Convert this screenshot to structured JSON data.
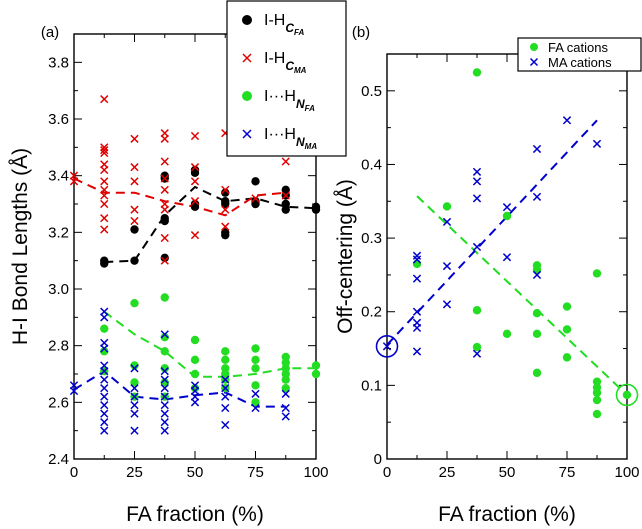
{
  "figure": {
    "colors": {
      "black": "#000000",
      "red": "#e00000",
      "green": "#22dd22",
      "blue": "#0000cc"
    }
  },
  "chart_data": [
    {
      "panel_label": "(a)",
      "type": "scatter",
      "xlabel": "FA fraction (%)",
      "ylabel": "H-I Bond Lengths (Å)",
      "xlim": [
        0,
        100
      ],
      "ylim": [
        2.4,
        3.9
      ],
      "xticks": [
        0,
        25,
        50,
        75,
        100
      ],
      "yticks": [
        2.4,
        2.6,
        2.8,
        3.0,
        3.2,
        3.4,
        3.6,
        3.8
      ],
      "ytick_labels": [
        "2.4",
        "2.6",
        "2.8",
        "3.0",
        "3.2",
        "3.4",
        "3.6",
        "3.8"
      ],
      "grid": false,
      "legend": {
        "placement": "top-right"
      },
      "series": [
        {
          "legend": {
            "base": "I-H",
            "sub": "C",
            "subsub": "FA"
          },
          "color": "#000000",
          "marker": "circle",
          "points": [
            [
              12.5,
              3.09
            ],
            [
              12.5,
              3.1
            ],
            [
              25,
              3.1
            ],
            [
              25,
              3.21
            ],
            [
              37.5,
              3.11
            ],
            [
              37.5,
              3.24
            ],
            [
              37.5,
              3.25
            ],
            [
              37.5,
              3.39
            ],
            [
              37.5,
              3.4
            ],
            [
              50,
              3.29
            ],
            [
              50,
              3.3
            ],
            [
              50,
              3.41
            ],
            [
              50,
              3.42
            ],
            [
              62.5,
              3.19
            ],
            [
              62.5,
              3.2
            ],
            [
              62.5,
              3.3
            ],
            [
              62.5,
              3.31
            ],
            [
              62.5,
              3.34
            ],
            [
              75,
              3.3
            ],
            [
              75,
              3.31
            ],
            [
              75,
              3.38
            ],
            [
              87.5,
              3.28
            ],
            [
              87.5,
              3.3
            ],
            [
              87.5,
              3.33
            ],
            [
              87.5,
              3.35
            ],
            [
              100,
              3.28
            ],
            [
              100,
              3.29
            ]
          ],
          "mean_line": [
            [
              12.5,
              3.095
            ],
            [
              25,
              3.1
            ],
            [
              37.5,
              3.26
            ],
            [
              50,
              3.36
            ],
            [
              62.5,
              3.31
            ],
            [
              75,
              3.32
            ],
            [
              87.5,
              3.29
            ],
            [
              100,
              3.285
            ]
          ]
        },
        {
          "legend": {
            "base": "I-H",
            "sub": "C",
            "subsub": "MA"
          },
          "color": "#e00000",
          "marker": "x",
          "points": [
            [
              0,
              3.38
            ],
            [
              0,
              3.4
            ],
            [
              12.5,
              3.21
            ],
            [
              12.5,
              3.25
            ],
            [
              12.5,
              3.3
            ],
            [
              12.5,
              3.33
            ],
            [
              12.5,
              3.35
            ],
            [
              12.5,
              3.38
            ],
            [
              12.5,
              3.42
            ],
            [
              12.5,
              3.44
            ],
            [
              12.5,
              3.48
            ],
            [
              12.5,
              3.49
            ],
            [
              12.5,
              3.5
            ],
            [
              12.5,
              3.67
            ],
            [
              25,
              3.24
            ],
            [
              25,
              3.28
            ],
            [
              25,
              3.38
            ],
            [
              25,
              3.43
            ],
            [
              25,
              3.53
            ],
            [
              37.5,
              3.1
            ],
            [
              37.5,
              3.18
            ],
            [
              37.5,
              3.28
            ],
            [
              37.5,
              3.3
            ],
            [
              37.5,
              3.35
            ],
            [
              37.5,
              3.39
            ],
            [
              37.5,
              3.45
            ],
            [
              37.5,
              3.53
            ],
            [
              37.5,
              3.55
            ],
            [
              50,
              3.19
            ],
            [
              50,
              3.31
            ],
            [
              50,
              3.38
            ],
            [
              50,
              3.43
            ],
            [
              50,
              3.54
            ],
            [
              62.5,
              3.22
            ],
            [
              62.5,
              3.28
            ],
            [
              62.5,
              3.35
            ],
            [
              62.5,
              3.55
            ],
            [
              75,
              3.32
            ],
            [
              75,
              3.53
            ],
            [
              87.5,
              3.33
            ],
            [
              87.5,
              3.45
            ]
          ],
          "mean_line": [
            [
              0,
              3.39
            ],
            [
              12.5,
              3.34
            ],
            [
              25,
              3.34
            ],
            [
              37.5,
              3.31
            ],
            [
              50,
              3.29
            ],
            [
              62.5,
              3.26
            ],
            [
              75,
              3.33
            ],
            [
              87.5,
              3.34
            ]
          ]
        },
        {
          "legend": {
            "base": "I···H",
            "sub": "N",
            "subsub": "FA"
          },
          "color": "#22dd22",
          "marker": "circle",
          "points": [
            [
              12.5,
              2.71
            ],
            [
              12.5,
              2.78
            ],
            [
              12.5,
              2.86
            ],
            [
              25,
              2.62
            ],
            [
              25,
              2.67
            ],
            [
              25,
              2.73
            ],
            [
              25,
              2.95
            ],
            [
              37.5,
              2.62
            ],
            [
              37.5,
              2.67
            ],
            [
              37.5,
              2.72
            ],
            [
              37.5,
              2.78
            ],
            [
              37.5,
              2.83
            ],
            [
              37.5,
              2.97
            ],
            [
              50,
              2.65
            ],
            [
              50,
              2.7
            ],
            [
              50,
              2.75
            ],
            [
              50,
              2.82
            ],
            [
              62.5,
              2.65
            ],
            [
              62.5,
              2.68
            ],
            [
              62.5,
              2.7
            ],
            [
              62.5,
              2.72
            ],
            [
              62.5,
              2.75
            ],
            [
              62.5,
              2.78
            ],
            [
              75,
              2.6
            ],
            [
              75,
              2.66
            ],
            [
              75,
              2.72
            ],
            [
              75,
              2.75
            ],
            [
              75,
              2.79
            ],
            [
              87.5,
              2.65
            ],
            [
              87.5,
              2.68
            ],
            [
              87.5,
              2.7
            ],
            [
              87.5,
              2.72
            ],
            [
              87.5,
              2.74
            ],
            [
              87.5,
              2.76
            ],
            [
              100,
              2.7
            ],
            [
              100,
              2.73
            ]
          ],
          "mean_line": [
            [
              12.5,
              2.92
            ],
            [
              25,
              2.84
            ],
            [
              37.5,
              2.78
            ],
            [
              50,
              2.69
            ],
            [
              62.5,
              2.69
            ],
            [
              75,
              2.7
            ],
            [
              87.5,
              2.72
            ],
            [
              100,
              2.72
            ]
          ]
        },
        {
          "legend": {
            "base": "I···H",
            "sub": "N",
            "subsub": "MA"
          },
          "color": "#0000cc",
          "marker": "x",
          "points": [
            [
              0,
              2.64
            ],
            [
              0,
              2.66
            ],
            [
              12.5,
              2.5
            ],
            [
              12.5,
              2.53
            ],
            [
              12.5,
              2.56
            ],
            [
              12.5,
              2.59
            ],
            [
              12.5,
              2.62
            ],
            [
              12.5,
              2.65
            ],
            [
              12.5,
              2.68
            ],
            [
              12.5,
              2.71
            ],
            [
              12.5,
              2.73
            ],
            [
              12.5,
              2.79
            ],
            [
              12.5,
              2.81
            ],
            [
              12.5,
              2.9
            ],
            [
              12.5,
              2.92
            ],
            [
              25,
              2.5
            ],
            [
              25,
              2.56
            ],
            [
              25,
              2.59
            ],
            [
              25,
              2.62
            ],
            [
              25,
              2.65
            ],
            [
              25,
              2.72
            ],
            [
              37.5,
              2.5
            ],
            [
              37.5,
              2.53
            ],
            [
              37.5,
              2.56
            ],
            [
              37.5,
              2.59
            ],
            [
              37.5,
              2.62
            ],
            [
              37.5,
              2.65
            ],
            [
              37.5,
              2.68
            ],
            [
              37.5,
              2.71
            ],
            [
              37.5,
              2.84
            ],
            [
              50,
              2.6
            ],
            [
              50,
              2.62
            ],
            [
              50,
              2.64
            ],
            [
              50,
              2.66
            ],
            [
              62.5,
              2.52
            ],
            [
              62.5,
              2.58
            ],
            [
              62.5,
              2.62
            ],
            [
              62.5,
              2.65
            ],
            [
              62.5,
              2.68
            ],
            [
              75,
              2.58
            ],
            [
              75,
              2.63
            ],
            [
              87.5,
              2.55
            ],
            [
              87.5,
              2.58
            ],
            [
              87.5,
              2.63
            ]
          ],
          "mean_line": [
            [
              0,
              2.645
            ],
            [
              12.5,
              2.71
            ],
            [
              25,
              2.62
            ],
            [
              37.5,
              2.61
            ],
            [
              50,
              2.625
            ],
            [
              62.5,
              2.635
            ],
            [
              75,
              2.585
            ],
            [
              87.5,
              2.585
            ]
          ]
        }
      ]
    },
    {
      "panel_label": "(b)",
      "type": "scatter",
      "xlabel": "FA fraction (%)",
      "ylabel": "Off-centering (Å)",
      "xlim": [
        0,
        100
      ],
      "ylim": [
        0,
        0.55
      ],
      "xticks": [
        0,
        25,
        50,
        75,
        100
      ],
      "yticks": [
        0,
        0.1,
        0.2,
        0.3,
        0.4,
        0.5
      ],
      "ytick_labels": [
        "0",
        "0.1",
        "0.2",
        "0.3",
        "0.4",
        "0.5"
      ],
      "grid": false,
      "legend": {
        "placement": "top-right"
      },
      "series": [
        {
          "name": "FA cations",
          "color": "#22dd22",
          "marker": "circle",
          "points": [
            [
              12.5,
              0.265
            ],
            [
              25,
              0.343
            ],
            [
              37.5,
              0.525
            ],
            [
              37.5,
              0.202
            ],
            [
              37.5,
              0.152
            ],
            [
              50,
              0.33
            ],
            [
              50,
              0.17
            ],
            [
              62.5,
              0.263
            ],
            [
              62.5,
              0.257
            ],
            [
              62.5,
              0.198
            ],
            [
              62.5,
              0.17
            ],
            [
              62.5,
              0.117
            ],
            [
              75,
              0.207
            ],
            [
              75,
              0.176
            ],
            [
              75,
              0.138
            ],
            [
              87.5,
              0.252
            ],
            [
              87.5,
              0.105
            ],
            [
              87.5,
              0.097
            ],
            [
              87.5,
              0.09
            ],
            [
              87.5,
              0.08
            ],
            [
              87.5,
              0.061
            ],
            [
              100,
              0.087
            ]
          ],
          "fit_line": [
            [
              12.5,
              0.357
            ],
            [
              100,
              0.087
            ]
          ],
          "circled_point": [
            100,
            0.087
          ]
        },
        {
          "name": "MA cations",
          "color": "#0000cc",
          "marker": "x",
          "points": [
            [
              0,
              0.153
            ],
            [
              12.5,
              0.276
            ],
            [
              12.5,
              0.271
            ],
            [
              12.5,
              0.245
            ],
            [
              12.5,
              0.2
            ],
            [
              12.5,
              0.185
            ],
            [
              12.5,
              0.178
            ],
            [
              12.5,
              0.146
            ],
            [
              25,
              0.322
            ],
            [
              25,
              0.262
            ],
            [
              25,
              0.21
            ],
            [
              37.5,
              0.39
            ],
            [
              37.5,
              0.377
            ],
            [
              37.5,
              0.354
            ],
            [
              37.5,
              0.288
            ],
            [
              37.5,
              0.143
            ],
            [
              50,
              0.342
            ],
            [
              50,
              0.274
            ],
            [
              62.5,
              0.421
            ],
            [
              62.5,
              0.356
            ],
            [
              62.5,
              0.25
            ],
            [
              75,
              0.46
            ],
            [
              87.5,
              0.428
            ]
          ],
          "fit_line": [
            [
              0,
              0.155
            ],
            [
              87.5,
              0.46
            ]
          ],
          "circled_point": [
            0,
            0.153
          ]
        }
      ]
    }
  ]
}
